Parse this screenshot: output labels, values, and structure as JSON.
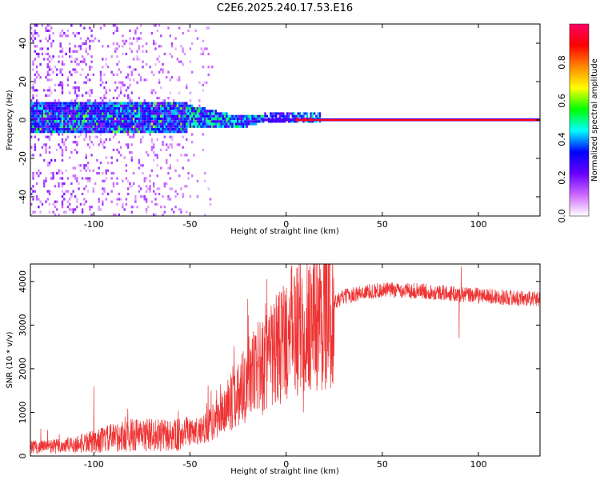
{
  "title": "C2E6.2025.240.17.53.E16",
  "chart_data": [
    {
      "type": "heatmap",
      "xlabel": "Height of straight line (km)",
      "ylabel": "Frequency (Hz)",
      "xlim": [
        -133,
        132
      ],
      "ylim": [
        -50,
        50
      ],
      "xticks": [
        -100,
        -50,
        0,
        50,
        100
      ],
      "yticks": [
        -40,
        -20,
        0,
        20,
        40
      ],
      "colorbar": {
        "label": "Normalized spectral amplitude",
        "range": [
          0,
          1
        ],
        "ticks": [
          "0.0",
          "0.2",
          "0.4",
          "0.6",
          "0.8"
        ],
        "colors": [
          "#ffffff",
          "#cc66ff",
          "#6600ff",
          "#0000ff",
          "#00ffff",
          "#00ff00",
          "#ffff00",
          "#ff8800",
          "#ff0000",
          "#ff0066"
        ]
      },
      "features": {
        "carrier_line_frequency_hz": 0,
        "carrier_line_start_km": 5,
        "carrier_line_amplitude": 0.9,
        "noise_region_km": [
          -133,
          -52
        ],
        "transition_region_km": [
          -52,
          -12
        ],
        "core_band_halfwidth_hz": 8
      }
    },
    {
      "type": "line",
      "xlabel": "Height of straight line (km)",
      "ylabel": "SNR (10 * v/v)",
      "xlim": [
        -133,
        132
      ],
      "ylim": [
        0,
        4400
      ],
      "xticks": [
        -100,
        -50,
        0,
        50,
        100
      ],
      "yticks": [
        0,
        1000,
        2000,
        3000,
        4000
      ],
      "color": "#ee3333",
      "x": [
        -133,
        -120,
        -110,
        -100,
        -90,
        -80,
        -70,
        -60,
        -55,
        -50,
        -45,
        -40,
        -35,
        -30,
        -25,
        -20,
        -15,
        -10,
        -5,
        0,
        5,
        10,
        15,
        20,
        25,
        30,
        40,
        50,
        60,
        70,
        80,
        90,
        100,
        110,
        120,
        132
      ],
      "y": [
        200,
        220,
        260,
        330,
        420,
        480,
        480,
        460,
        480,
        520,
        600,
        700,
        900,
        1150,
        1450,
        1750,
        1950,
        2150,
        2400,
        2700,
        2900,
        3050,
        3150,
        3300,
        3500,
        3650,
        3750,
        3800,
        3800,
        3780,
        3750,
        3700,
        3680,
        3650,
        3620,
        3600
      ],
      "spikes": [
        {
          "x": -100,
          "y": 1600
        },
        {
          "x": -20,
          "y": 3600
        },
        {
          "x": -10,
          "y": 4050
        },
        {
          "x": 0,
          "y": 3550
        },
        {
          "x": 9,
          "y": 1000
        },
        {
          "x": 90,
          "y": 2700
        },
        {
          "x": 91,
          "y": 4350
        }
      ]
    }
  ]
}
